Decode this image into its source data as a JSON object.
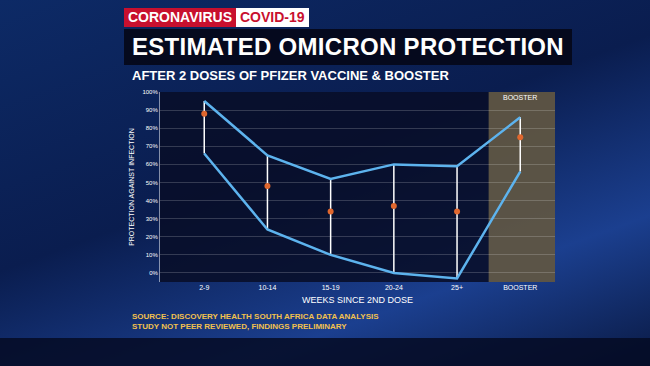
{
  "chart_data": {
    "type": "line",
    "header": [
      "CORONAVIRUS",
      "COVID-19"
    ],
    "title": "ESTIMATED OMICRON PROTECTION",
    "subtitle": "AFTER 2 DOSES OF PFIZER VACCINE & BOOSTER",
    "x_label": "WEEKS SINCE 2ND DOSE",
    "y_label": "PROTECTION AGAINST INFECTION",
    "categories": [
      "2-9",
      "10-14",
      "15-19",
      "20-24",
      "25+",
      "BOOSTER"
    ],
    "series": [
      {
        "type": "line",
        "color": "#5db3ee",
        "values": [
          95,
          65,
          52,
          60,
          59,
          86
        ]
      },
      {
        "type": "line",
        "color": "#5db3ee",
        "values": [
          66,
          24,
          10,
          0,
          -3,
          56
        ]
      },
      {
        "type": "scatter",
        "marker": "circle",
        "color": "#e0672e",
        "values": [
          88,
          48,
          34,
          37,
          34,
          75
        ]
      }
    ],
    "ylim": [
      -5,
      100
    ],
    "yticks": [
      {
        "value": 0,
        "label": "0%"
      },
      {
        "value": 10,
        "label": "10%"
      },
      {
        "value": 20,
        "label": "20%"
      },
      {
        "value": 30,
        "label": "30%"
      },
      {
        "value": 40,
        "label": "40%"
      },
      {
        "value": 50,
        "label": "50%"
      },
      {
        "value": 60,
        "label": "60%"
      },
      {
        "value": 70,
        "label": "70%"
      },
      {
        "value": 80,
        "label": "80%"
      },
      {
        "value": 90,
        "label": "90%"
      },
      {
        "value": 100,
        "label": "100%"
      }
    ],
    "grid": true,
    "annotations": [
      {
        "text": "BOOSTER",
        "x": "BOOSTER"
      }
    ],
    "notes": [
      "SOURCE: DISCOVERY HEALTH SOUTH AFRICA DATA ANALYSIS",
      "STUDY NOT PEER REVIEWED, FINDINGS PRELIMINARY"
    ]
  }
}
